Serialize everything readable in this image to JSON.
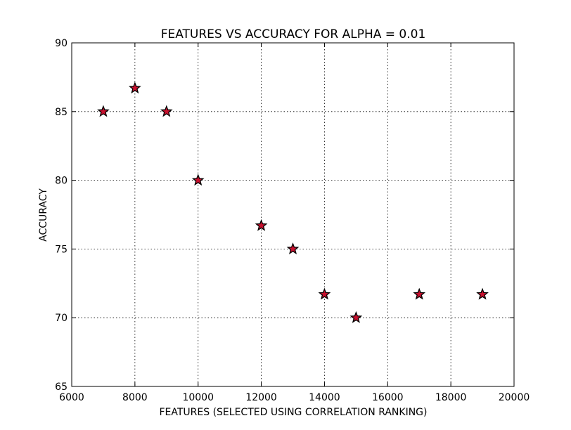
{
  "chart_data": {
    "type": "scatter",
    "title": "FEATURES VS ACCURACY FOR ALPHA = 0.01",
    "xlabel": "FEATURES (SELECTED USING CORRELATION RANKING)",
    "ylabel": "ACCURACY",
    "xlim": [
      6000,
      20000
    ],
    "ylim": [
      65,
      90
    ],
    "xticks": [
      6000,
      8000,
      10000,
      12000,
      14000,
      16000,
      18000,
      20000
    ],
    "yticks": [
      65,
      70,
      75,
      80,
      85,
      90
    ],
    "grid": true,
    "marker": "star",
    "marker_color": "#c8102e",
    "series": [
      {
        "points": [
          {
            "x": 7000,
            "y": 85.0
          },
          {
            "x": 8000,
            "y": 86.7
          },
          {
            "x": 9000,
            "y": 85.0
          },
          {
            "x": 10000,
            "y": 80.0
          },
          {
            "x": 12000,
            "y": 76.7
          },
          {
            "x": 13000,
            "y": 75.0
          },
          {
            "x": 14000,
            "y": 71.7
          },
          {
            "x": 15000,
            "y": 70.0
          },
          {
            "x": 17000,
            "y": 71.7
          },
          {
            "x": 19000,
            "y": 71.7
          }
        ]
      }
    ]
  }
}
